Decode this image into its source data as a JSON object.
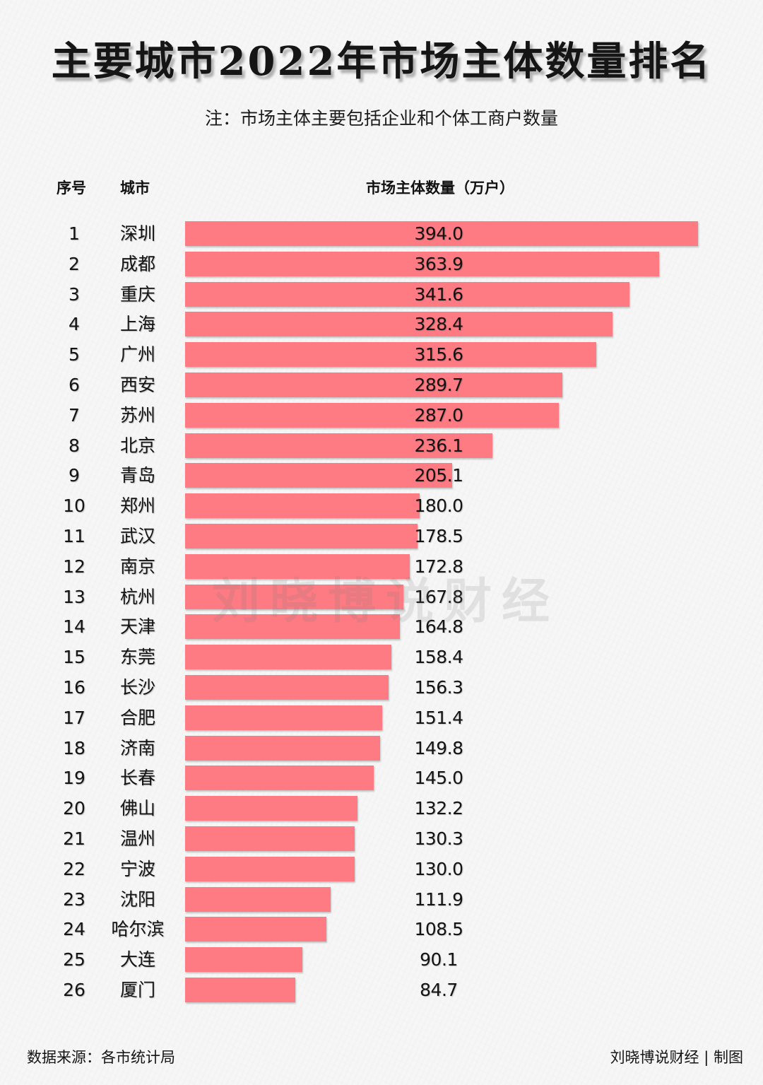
{
  "title": "主要城市2022年市场主体数量排名",
  "note": "注：市场主体主要包括企业和个体工商户数量",
  "headers": {
    "rank": "序号",
    "city": "城市",
    "value": "市场主体数量（万户）"
  },
  "colors": {
    "bar": "#fe7b83",
    "background": "#f6f6f6",
    "text": "#141414"
  },
  "watermark": "刘晓博说财经",
  "footer": {
    "source": "数据来源：各市统计局",
    "credit": "刘晓博说财经 | 制图"
  },
  "chart_data": {
    "type": "bar",
    "orientation": "horizontal",
    "title": "主要城市2022年市场主体数量排名",
    "subtitle": "注：市场主体主要包括企业和个体工商户数量",
    "xlabel": "市场主体数量（万户）",
    "ylabel": "城市",
    "unit": "万户",
    "grid": false,
    "legend": null,
    "xlim": [
      0,
      394.0
    ],
    "categories": [
      "深圳",
      "成都",
      "重庆",
      "上海",
      "广州",
      "西安",
      "苏州",
      "北京",
      "青岛",
      "郑州",
      "武汉",
      "南京",
      "杭州",
      "天津",
      "东莞",
      "长沙",
      "合肥",
      "济南",
      "长春",
      "佛山",
      "温州",
      "宁波",
      "沈阳",
      "哈尔滨",
      "大连",
      "厦门"
    ],
    "ranks": [
      1,
      2,
      3,
      4,
      5,
      6,
      7,
      8,
      9,
      10,
      11,
      12,
      13,
      14,
      15,
      16,
      17,
      18,
      19,
      20,
      21,
      22,
      23,
      24,
      25,
      26
    ],
    "values": [
      394.0,
      363.9,
      341.6,
      328.4,
      315.6,
      289.7,
      287.0,
      236.1,
      205.1,
      180.0,
      178.5,
      172.8,
      167.8,
      164.8,
      158.4,
      156.3,
      151.4,
      149.8,
      145.0,
      132.2,
      130.3,
      130.0,
      111.9,
      108.5,
      90.1,
      84.7
    ],
    "value_labels": [
      "394.0",
      "363.9",
      "341.6",
      "328.4",
      "315.6",
      "289.7",
      "287.0",
      "236.1",
      "205.1",
      "180.0",
      "178.5",
      "172.8",
      "167.8",
      "164.8",
      "158.4",
      "156.3",
      "151.4",
      "149.8",
      "145.0",
      "132.2",
      "130.3",
      "130.0",
      "111.9",
      "108.5",
      "90.1",
      "84.7"
    ],
    "source": "数据来源：各市统计局",
    "credit": "刘晓博说财经 | 制图"
  }
}
